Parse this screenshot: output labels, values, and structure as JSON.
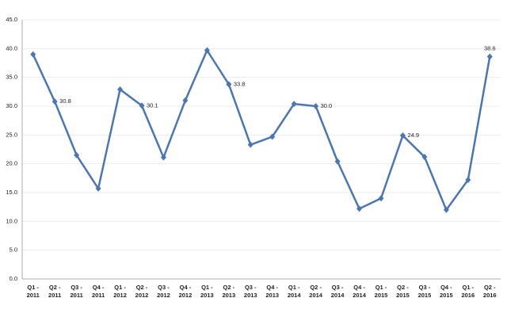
{
  "chart_data": {
    "type": "line",
    "categories": [
      "Q1 - 2011",
      "Q2 - 2011",
      "Q3 - 2011",
      "Q4 - 2011",
      "Q1 - 2012",
      "Q2 - 2012",
      "Q3 - 2012",
      "Q4 - 2012",
      "Q1 - 2013",
      "Q2 - 2013",
      "Q3 - 2013",
      "Q4 - 2013",
      "Q1 - 2014",
      "Q2 - 2014",
      "Q3 - 2014",
      "Q4 - 2014",
      "Q1 - 2015",
      "Q2 - 2015",
      "Q3 - 2015",
      "Q4 - 2015",
      "Q1 - 2016",
      "Q2 - 2016"
    ],
    "values": [
      39.0,
      30.8,
      21.5,
      15.7,
      32.9,
      30.1,
      21.1,
      31.0,
      39.7,
      33.8,
      23.3,
      24.7,
      30.4,
      30.0,
      20.4,
      12.2,
      14.0,
      24.9,
      21.2,
      12.0,
      17.2,
      38.6
    ],
    "value_labels": [
      null,
      "30.8",
      null,
      null,
      null,
      "30.1",
      null,
      null,
      null,
      "33.8",
      null,
      null,
      null,
      "30.0",
      null,
      null,
      null,
      "24.9",
      null,
      null,
      null,
      "38.6"
    ],
    "color": "#4a77b4",
    "ylim": [
      0,
      45
    ],
    "yticks": [
      {
        "value": 0,
        "label": "0.0"
      },
      {
        "value": 5,
        "label": "5.0"
      },
      {
        "value": 10,
        "label": "10.0"
      },
      {
        "value": 15,
        "label": "15.0"
      },
      {
        "value": 20,
        "label": "20.0"
      },
      {
        "value": 25,
        "label": "25.0"
      },
      {
        "value": 30,
        "label": "30.0"
      },
      {
        "value": 35,
        "label": "35.0"
      },
      {
        "value": 40,
        "label": "40.0"
      },
      {
        "value": 45,
        "label": "45.0"
      }
    ],
    "grid": true
  }
}
